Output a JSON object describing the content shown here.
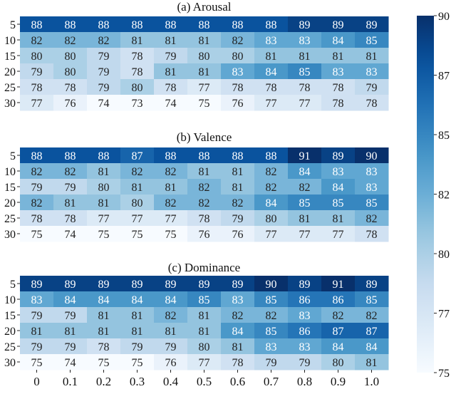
{
  "chart_data": {
    "type": "heatmap",
    "x_ticks": [
      "0",
      "0.1",
      "0.2",
      "0.3",
      "0.4",
      "0.5",
      "0.6",
      "0.7",
      "0.8",
      "0.9",
      "1.0"
    ],
    "y_ticks": [
      "5",
      "10",
      "15",
      "20",
      "25",
      "30"
    ],
    "colorbar": {
      "min": 75,
      "max": 90,
      "ticks": [
        "75",
        "77",
        "80",
        "82",
        "85",
        "87",
        "90"
      ],
      "colormap": "Blues"
    },
    "panels": [
      {
        "title": "(a) Arousal",
        "values": [
          [
            88,
            88,
            88,
            88,
            88,
            88,
            88,
            88,
            89,
            89,
            89
          ],
          [
            82,
            82,
            82,
            81,
            81,
            81,
            82,
            83,
            83,
            84,
            85
          ],
          [
            80,
            80,
            79,
            78,
            79,
            80,
            80,
            81,
            81,
            81,
            81
          ],
          [
            79,
            80,
            79,
            78,
            81,
            81,
            83,
            84,
            85,
            83,
            83
          ],
          [
            78,
            78,
            79,
            80,
            78,
            77,
            78,
            78,
            78,
            78,
            79
          ],
          [
            77,
            76,
            74,
            73,
            74,
            75,
            76,
            77,
            77,
            78,
            78
          ]
        ]
      },
      {
        "title": "(b) Valence",
        "values": [
          [
            88,
            88,
            88,
            87,
            88,
            88,
            88,
            88,
            91,
            89,
            90
          ],
          [
            82,
            82,
            81,
            82,
            82,
            81,
            81,
            82,
            84,
            83,
            83
          ],
          [
            79,
            79,
            80,
            81,
            81,
            82,
            81,
            82,
            82,
            84,
            83
          ],
          [
            82,
            81,
            81,
            80,
            82,
            82,
            82,
            84,
            85,
            85,
            85
          ],
          [
            78,
            78,
            77,
            77,
            77,
            78,
            79,
            80,
            81,
            81,
            82
          ],
          [
            75,
            74,
            75,
            75,
            75,
            76,
            76,
            77,
            77,
            77,
            78
          ]
        ]
      },
      {
        "title": "(c) Dominance",
        "values": [
          [
            89,
            89,
            89,
            89,
            89,
            89,
            89,
            90,
            89,
            91,
            89
          ],
          [
            83,
            84,
            84,
            84,
            84,
            85,
            83,
            85,
            86,
            86,
            85
          ],
          [
            79,
            79,
            81,
            81,
            82,
            81,
            82,
            82,
            83,
            82,
            82
          ],
          [
            81,
            81,
            81,
            81,
            81,
            81,
            84,
            85,
            86,
            87,
            87
          ],
          [
            79,
            79,
            78,
            79,
            79,
            80,
            81,
            83,
            83,
            84,
            84
          ],
          [
            75,
            74,
            75,
            75,
            76,
            77,
            78,
            79,
            79,
            80,
            81
          ]
        ]
      }
    ]
  }
}
